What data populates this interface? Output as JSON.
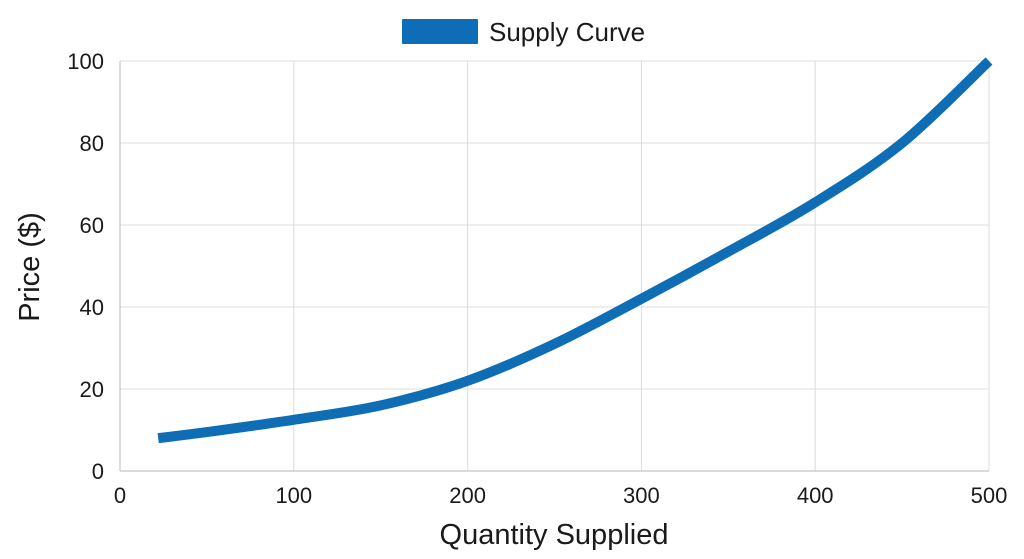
{
  "chart_data": {
    "type": "line",
    "xlabel": "Quantity Supplied",
    "ylabel": "Price ($)",
    "xlim": [
      0,
      500
    ],
    "ylim": [
      0,
      100
    ],
    "x_ticks": [
      0,
      100,
      200,
      300,
      400,
      500
    ],
    "y_ticks": [
      0,
      20,
      40,
      60,
      80,
      100
    ],
    "grid": true,
    "legend_position": "top-center",
    "series": [
      {
        "name": "Supply Curve",
        "color": "#0f6db5",
        "x": [
          22,
          50,
          100,
          150,
          200,
          250,
          300,
          350,
          400,
          450,
          500
        ],
        "y": [
          8,
          9.5,
          12.5,
          16,
          22,
          31,
          42,
          53.5,
          65.5,
          80,
          100
        ]
      }
    ]
  }
}
